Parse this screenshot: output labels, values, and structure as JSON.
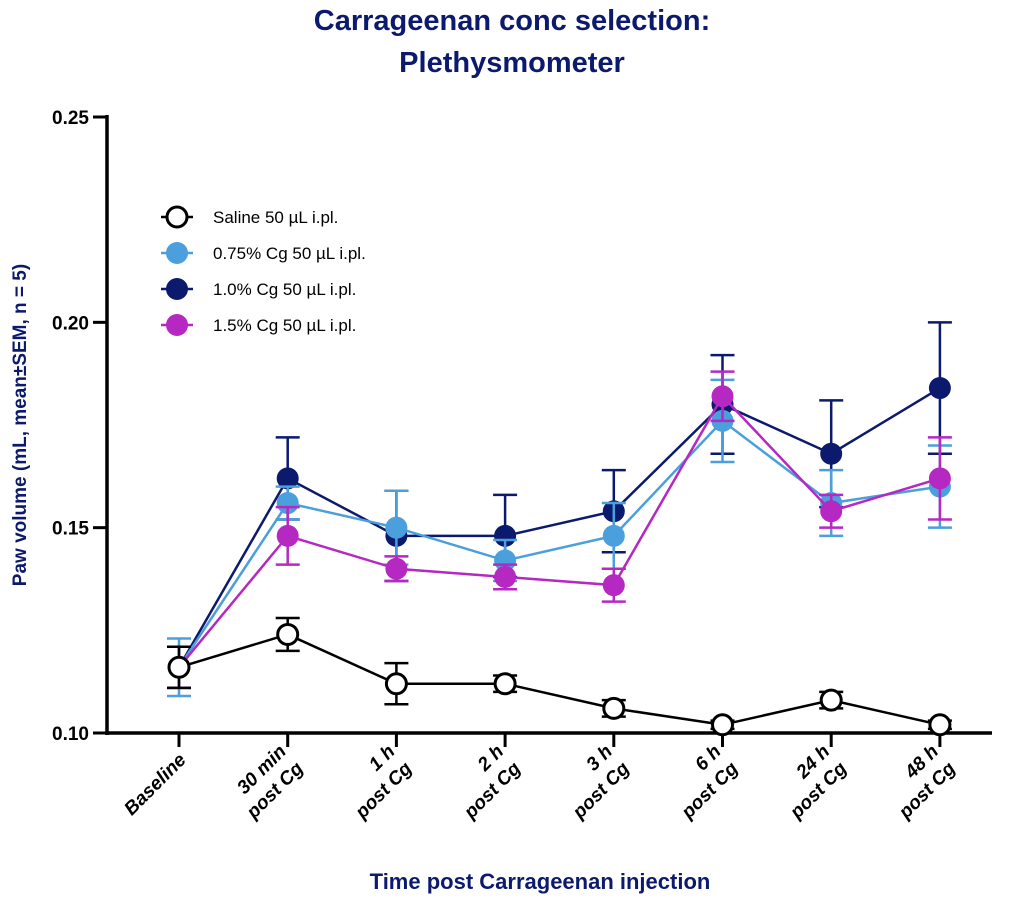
{
  "chart_data": {
    "type": "line",
    "title": [
      "Carrageenan conc selection:",
      "Plethysmometer"
    ],
    "xlabel": "Time post Carrageenan injection",
    "ylabel": "Paw volume (mL, mean±SEM, n = 5)",
    "ylim": [
      0.1,
      0.25
    ],
    "yticks": [
      0.1,
      0.15,
      0.2,
      0.25
    ],
    "ytick_labels": [
      "0.10",
      "0.15",
      "0.20",
      "0.25"
    ],
    "categories": [
      [
        "Baseline"
      ],
      [
        "30 min",
        "post Cg"
      ],
      [
        "1 h",
        "post Cg"
      ],
      [
        "2 h",
        "post Cg"
      ],
      [
        "3 h",
        "post Cg"
      ],
      [
        "6 h",
        "post Cg"
      ],
      [
        "24 h",
        "post Cg"
      ],
      [
        "48 h",
        "post Cg"
      ]
    ],
    "grid": false,
    "legend_position": "top-left",
    "series": [
      {
        "name": "Saline 50 µL i.pl.",
        "color": "#000000",
        "fill": "#ffffff",
        "marker": "open-circle",
        "values": [
          0.116,
          0.124,
          0.112,
          0.112,
          0.106,
          0.102,
          0.108,
          0.102
        ],
        "sem": [
          0.005,
          0.004,
          0.005,
          0.002,
          0.002,
          0.001,
          0.002,
          0.001
        ]
      },
      {
        "name": "0.75% Cg 50 µL i.pl.",
        "color": "#4a9fdc",
        "fill": "#4a9fdc",
        "marker": "filled-circle",
        "values": [
          0.116,
          0.156,
          0.15,
          0.142,
          0.148,
          0.176,
          0.156,
          0.16
        ],
        "sem": [
          0.007,
          0.004,
          0.009,
          0.005,
          0.008,
          0.01,
          0.008,
          0.01
        ]
      },
      {
        "name": "1.0% Cg 50 µL i.pl.",
        "color": "#0c1a6e",
        "fill": "#0c1a6e",
        "marker": "filled-circle",
        "values": [
          0.116,
          0.162,
          0.148,
          0.148,
          0.154,
          0.18,
          0.168,
          0.184
        ],
        "sem": [
          0.005,
          0.01,
          0.011,
          0.01,
          0.01,
          0.012,
          0.013,
          0.016
        ]
      },
      {
        "name": "1.5% Cg 50 µL i.pl.",
        "color": "#b528c2",
        "fill": "#b528c2",
        "marker": "filled-circle",
        "values": [
          0.116,
          0.148,
          0.14,
          0.138,
          0.136,
          0.182,
          0.154,
          0.162
        ],
        "sem": [
          0.005,
          0.007,
          0.003,
          0.003,
          0.004,
          0.006,
          0.004,
          0.01
        ]
      }
    ]
  }
}
